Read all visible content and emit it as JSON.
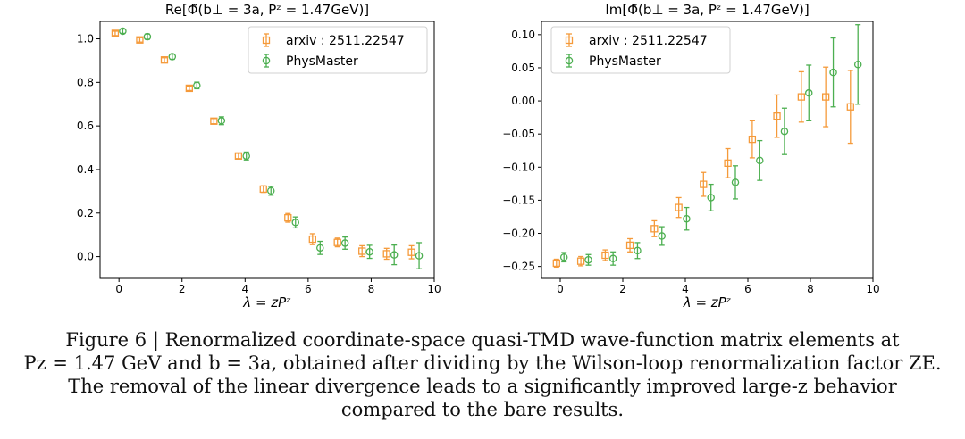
{
  "chart_data": [
    {
      "type": "scatter",
      "title": "Re[Φ̃(b⊥ = 3a, Pᶻ = 1.47GeV)]",
      "xlabel": "λ = zPᶻ",
      "ylabel": "",
      "xlim": [
        -0.6,
        10
      ],
      "ylim": [
        -0.1,
        1.08
      ],
      "x_ticks": [
        "0",
        "2",
        "4",
        "6",
        "8",
        "10"
      ],
      "y_ticks": [
        "0.0",
        "0.2",
        "0.4",
        "0.6",
        "0.8",
        "1.0"
      ],
      "legend_position": "top-right",
      "series": [
        {
          "name": "arxiv : 2511.22547",
          "color": "#f59a3a",
          "marker": "square",
          "x": [
            -0.12,
            0.66,
            1.44,
            2.23,
            3.01,
            3.79,
            4.58,
            5.36,
            6.14,
            6.93,
            7.71,
            8.49,
            9.28
          ],
          "y": [
            1.025,
            0.995,
            0.903,
            0.773,
            0.622,
            0.462,
            0.31,
            0.178,
            0.08,
            0.065,
            0.025,
            0.013,
            0.02
          ],
          "err": [
            0.01,
            0.01,
            0.01,
            0.01,
            0.012,
            0.012,
            0.015,
            0.02,
            0.025,
            0.02,
            0.025,
            0.025,
            0.03
          ]
        },
        {
          "name": "PhysMaster",
          "color": "#4caf50",
          "marker": "circle",
          "x": [
            0.12,
            0.9,
            1.69,
            2.47,
            3.25,
            4.04,
            4.82,
            5.6,
            6.38,
            7.17,
            7.95,
            8.73,
            9.52
          ],
          "y": [
            1.035,
            1.01,
            0.918,
            0.786,
            0.624,
            0.462,
            0.302,
            0.157,
            0.04,
            0.062,
            0.022,
            0.008,
            0.004
          ],
          "err": [
            0.01,
            0.012,
            0.012,
            0.015,
            0.018,
            0.018,
            0.02,
            0.025,
            0.03,
            0.028,
            0.03,
            0.045,
            0.06
          ]
        }
      ]
    },
    {
      "type": "scatter",
      "title": "Im[Φ̃(b⊥ = 3a, Pᶻ = 1.47GeV)]",
      "xlabel": "λ = zPᶻ",
      "ylabel": "",
      "xlim": [
        -0.6,
        10
      ],
      "ylim": [
        -0.268,
        0.12
      ],
      "x_ticks": [
        "0",
        "2",
        "4",
        "6",
        "8",
        "10"
      ],
      "y_ticks": [
        "−0.25",
        "−0.20",
        "−0.15",
        "−0.10",
        "−0.05",
        "0.00",
        "0.05",
        "0.10"
      ],
      "legend_position": "top-left",
      "series": [
        {
          "name": "arxiv : 2511.22547",
          "color": "#f59a3a",
          "marker": "square",
          "x": [
            -0.12,
            0.66,
            1.44,
            2.23,
            3.01,
            3.79,
            4.58,
            5.36,
            6.14,
            6.93,
            7.71,
            8.49,
            9.28
          ],
          "y": [
            -0.245,
            -0.242,
            -0.233,
            -0.218,
            -0.193,
            -0.161,
            -0.126,
            -0.094,
            -0.058,
            -0.023,
            0.006,
            0.006,
            -0.009
          ],
          "err": [
            0.006,
            0.007,
            0.008,
            0.01,
            0.012,
            0.015,
            0.018,
            0.022,
            0.028,
            0.032,
            0.038,
            0.045,
            0.055
          ]
        },
        {
          "name": "PhysMaster",
          "color": "#4caf50",
          "marker": "circle",
          "x": [
            0.12,
            0.9,
            1.69,
            2.47,
            3.25,
            4.04,
            4.82,
            5.6,
            6.38,
            7.17,
            7.95,
            8.73,
            9.52
          ],
          "y": [
            -0.236,
            -0.24,
            -0.238,
            -0.226,
            -0.204,
            -0.178,
            -0.146,
            -0.123,
            -0.09,
            -0.046,
            0.012,
            0.043,
            0.055
          ],
          "err": [
            0.007,
            0.008,
            0.01,
            0.012,
            0.014,
            0.017,
            0.02,
            0.025,
            0.03,
            0.035,
            0.042,
            0.052,
            0.06
          ]
        }
      ]
    }
  ],
  "caption": {
    "line1": "Figure 6 | Renormalized coordinate-space quasi-TMD wave-function matrix elements at",
    "line2": "Pz = 1.47 GeV and b = 3a, obtained after dividing by the Wilson-loop renormalization factor ZE.",
    "line3": "The removal of the linear divergence leads to a significantly improved large-z behavior",
    "line4": "compared to the bare results."
  }
}
